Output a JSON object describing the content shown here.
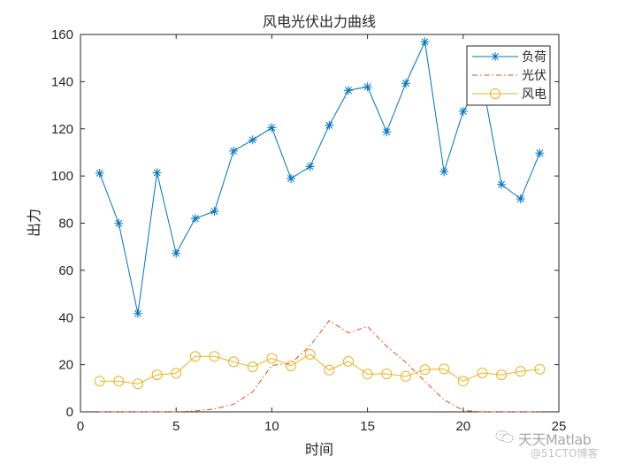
{
  "chart_data": {
    "type": "line",
    "title": "风电光伏出力曲线",
    "xlabel": "时间",
    "ylabel": "出力",
    "xlim": [
      0,
      25
    ],
    "ylim": [
      0,
      160
    ],
    "xticks": [
      0,
      5,
      10,
      15,
      20,
      25
    ],
    "yticks": [
      0,
      20,
      40,
      60,
      80,
      100,
      120,
      140,
      160
    ],
    "grid": false,
    "legend_position": "northeast",
    "x": [
      1,
      2,
      3,
      4,
      5,
      6,
      7,
      8,
      9,
      10,
      11,
      12,
      13,
      14,
      15,
      16,
      17,
      18,
      19,
      20,
      21,
      22,
      23,
      24
    ],
    "series": [
      {
        "name": "负荷",
        "color": "#0072BD",
        "line_style": "solid",
        "marker": "asterisk",
        "values": [
          101.2,
          79.9,
          41.7,
          101.4,
          67.2,
          82.0,
          85.0,
          110.6,
          115.3,
          120.5,
          98.9,
          104.0,
          121.5,
          136.3,
          137.8,
          118.7,
          139.3,
          156.9,
          101.8,
          127.4,
          140.0,
          96.4,
          90.3,
          109.7
        ]
      },
      {
        "name": "光伏",
        "color": "#D95319",
        "line_style": "dashdot",
        "marker": "none",
        "values": [
          0,
          0,
          0,
          0,
          0,
          0.4,
          1.2,
          3.2,
          8.5,
          19.7,
          20.6,
          28.0,
          38.7,
          33.5,
          36.2,
          27.8,
          21.0,
          12.9,
          5.1,
          0.6,
          0,
          0,
          0,
          0
        ]
      },
      {
        "name": "风电",
        "color": "#EDB120",
        "line_style": "solid",
        "marker": "circle",
        "values": [
          13.0,
          13.0,
          11.9,
          15.7,
          16.4,
          23.5,
          23.5,
          21.2,
          19.1,
          22.7,
          19.5,
          24.4,
          17.7,
          21.4,
          16.0,
          16.1,
          15.1,
          17.9,
          18.2,
          13.0,
          16.5,
          15.7,
          17.2,
          18.1
        ]
      }
    ]
  },
  "watermark": {
    "main": "天天Matlab",
    "sub": "@51CTO博客",
    "icon": "wechat-icon"
  }
}
